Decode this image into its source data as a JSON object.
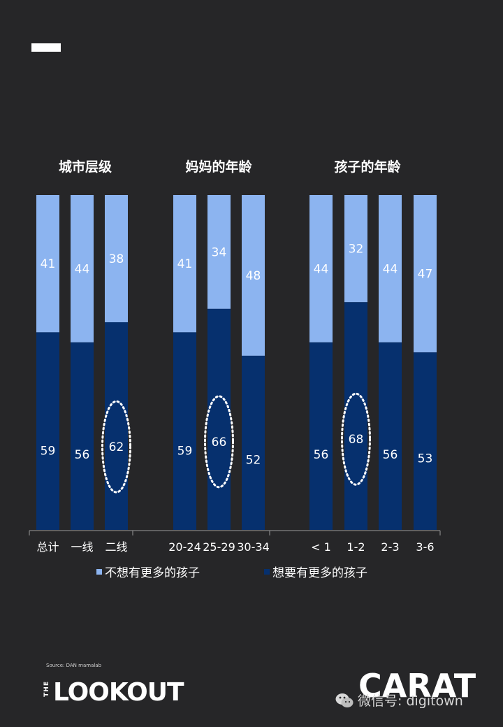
{
  "chart_data": {
    "type": "bar",
    "stacked": true,
    "percent": true,
    "groups": [
      {
        "title": "城市层级",
        "categories": [
          "总计",
          "一线",
          "二线"
        ],
        "series": [
          {
            "name": "想要有更多的孩子",
            "values": [
              59,
              56,
              62
            ]
          },
          {
            "name": "不想有更多的孩子",
            "values": [
              41,
              44,
              38
            ]
          }
        ],
        "highlight_index": 2
      },
      {
        "title": "妈妈的年龄",
        "categories": [
          "20-24",
          "25-29",
          "30-34"
        ],
        "series": [
          {
            "name": "想要有更多的孩子",
            "values": [
              59,
              66,
              52
            ]
          },
          {
            "name": "不想有更多的孩子",
            "values": [
              41,
              34,
              48
            ]
          }
        ],
        "highlight_index": 1
      },
      {
        "title": "孩子的年龄",
        "categories": [
          "< 1",
          "1-2",
          "2-3",
          "3-6"
        ],
        "series": [
          {
            "name": "想要有更多的孩子",
            "values": [
              56,
              68,
              56,
              53
            ]
          },
          {
            "name": "不想有更多的孩子",
            "values": [
              44,
              32,
              44,
              47
            ]
          }
        ],
        "highlight_index": 1
      }
    ],
    "legend": [
      {
        "name": "不想有更多的孩子",
        "color": "#8cb4f0"
      },
      {
        "name": "想要有更多的孩子",
        "color": "#06306e"
      }
    ],
    "legend_placement": "bottom",
    "ylim": [
      0,
      100
    ],
    "grid": false
  },
  "colors": {
    "background": "#262628",
    "light_bar": "#8cb4f0",
    "dark_bar": "#06306e"
  },
  "footer": {
    "source": "Source: DAN mamalab",
    "logo_left_small": "THE",
    "logo_left": "LOOKOUT",
    "logo_right": "CARAT",
    "watermark": "微信号: digitown"
  }
}
